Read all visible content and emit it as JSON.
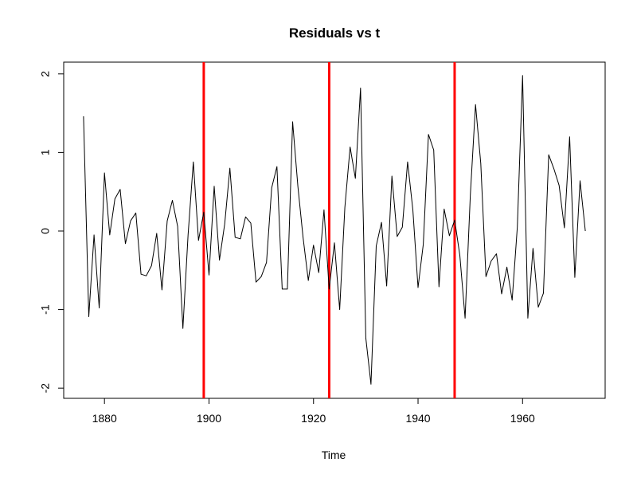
{
  "chart_data": {
    "type": "line",
    "title": "Residuals vs t",
    "xlabel": "Time",
    "ylabel": "",
    "xlim": [
      1872.2,
      1975.8
    ],
    "ylim": [
      -2.13,
      2.15
    ],
    "x_ticks": [
      1880,
      1900,
      1920,
      1940,
      1960
    ],
    "y_ticks": [
      -2,
      -1,
      0,
      1,
      2
    ],
    "x_tick_labels": [
      "1880",
      "1900",
      "1920",
      "1940",
      "1960"
    ],
    "y_tick_labels": [
      "-2",
      "-1",
      "0",
      "1",
      "2"
    ],
    "grid": false,
    "legend": "none",
    "series": [
      {
        "color": "#000000",
        "x": [
          1876,
          1877,
          1878,
          1879,
          1880,
          1881,
          1882,
          1883,
          1884,
          1885,
          1886,
          1887,
          1888,
          1889,
          1890,
          1891,
          1892,
          1893,
          1894,
          1895,
          1896,
          1897,
          1898,
          1899,
          1900,
          1901,
          1902,
          1903,
          1904,
          1905,
          1906,
          1907,
          1908,
          1909,
          1910,
          1911,
          1912,
          1913,
          1914,
          1915,
          1916,
          1917,
          1918,
          1919,
          1920,
          1921,
          1922,
          1923,
          1924,
          1925,
          1926,
          1927,
          1928,
          1929,
          1930,
          1931,
          1932,
          1933,
          1934,
          1935,
          1936,
          1937,
          1938,
          1939,
          1940,
          1941,
          1942,
          1943,
          1944,
          1945,
          1946,
          1947,
          1948,
          1949,
          1950,
          1951,
          1952,
          1953,
          1954,
          1955,
          1956,
          1957,
          1958,
          1959,
          1960,
          1961,
          1962,
          1963,
          1964,
          1965,
          1966,
          1967,
          1968,
          1969,
          1970,
          1971,
          1972
        ],
        "values": [
          1.46,
          -1.09,
          -0.05,
          -0.98,
          0.74,
          -0.05,
          0.41,
          0.53,
          -0.16,
          0.13,
          0.23,
          -0.55,
          -0.57,
          -0.44,
          -0.03,
          -0.75,
          0.13,
          0.39,
          0.06,
          -1.24,
          -0.05,
          0.88,
          -0.12,
          0.24,
          -0.56,
          0.57,
          -0.37,
          0.09,
          0.8,
          -0.08,
          -0.1,
          0.18,
          0.1,
          -0.65,
          -0.58,
          -0.4,
          0.55,
          0.82,
          -0.74,
          -0.74,
          1.39,
          0.57,
          -0.08,
          -0.63,
          -0.18,
          -0.53,
          0.27,
          -0.74,
          -0.15,
          -1.0,
          0.3,
          1.07,
          0.67,
          1.82,
          -1.36,
          -1.95,
          -0.19,
          0.11,
          -0.7,
          0.7,
          -0.07,
          0.05,
          0.88,
          0.27,
          -0.72,
          -0.17,
          1.23,
          1.03,
          -0.71,
          0.28,
          -0.06,
          0.14,
          -0.31,
          -1.11,
          0.46,
          1.61,
          0.86,
          -0.58,
          -0.38,
          -0.29,
          -0.8,
          -0.46,
          -0.88,
          0.05,
          1.98,
          -1.11,
          -0.22,
          -0.97,
          -0.79,
          0.97,
          0.79,
          0.58,
          0.04,
          1.2,
          -0.59,
          0.64,
          0.0
        ]
      }
    ],
    "vlines": [
      {
        "x": 1899,
        "color": "#ff0000"
      },
      {
        "x": 1923,
        "color": "#ff0000"
      },
      {
        "x": 1947,
        "color": "#ff0000"
      }
    ]
  }
}
